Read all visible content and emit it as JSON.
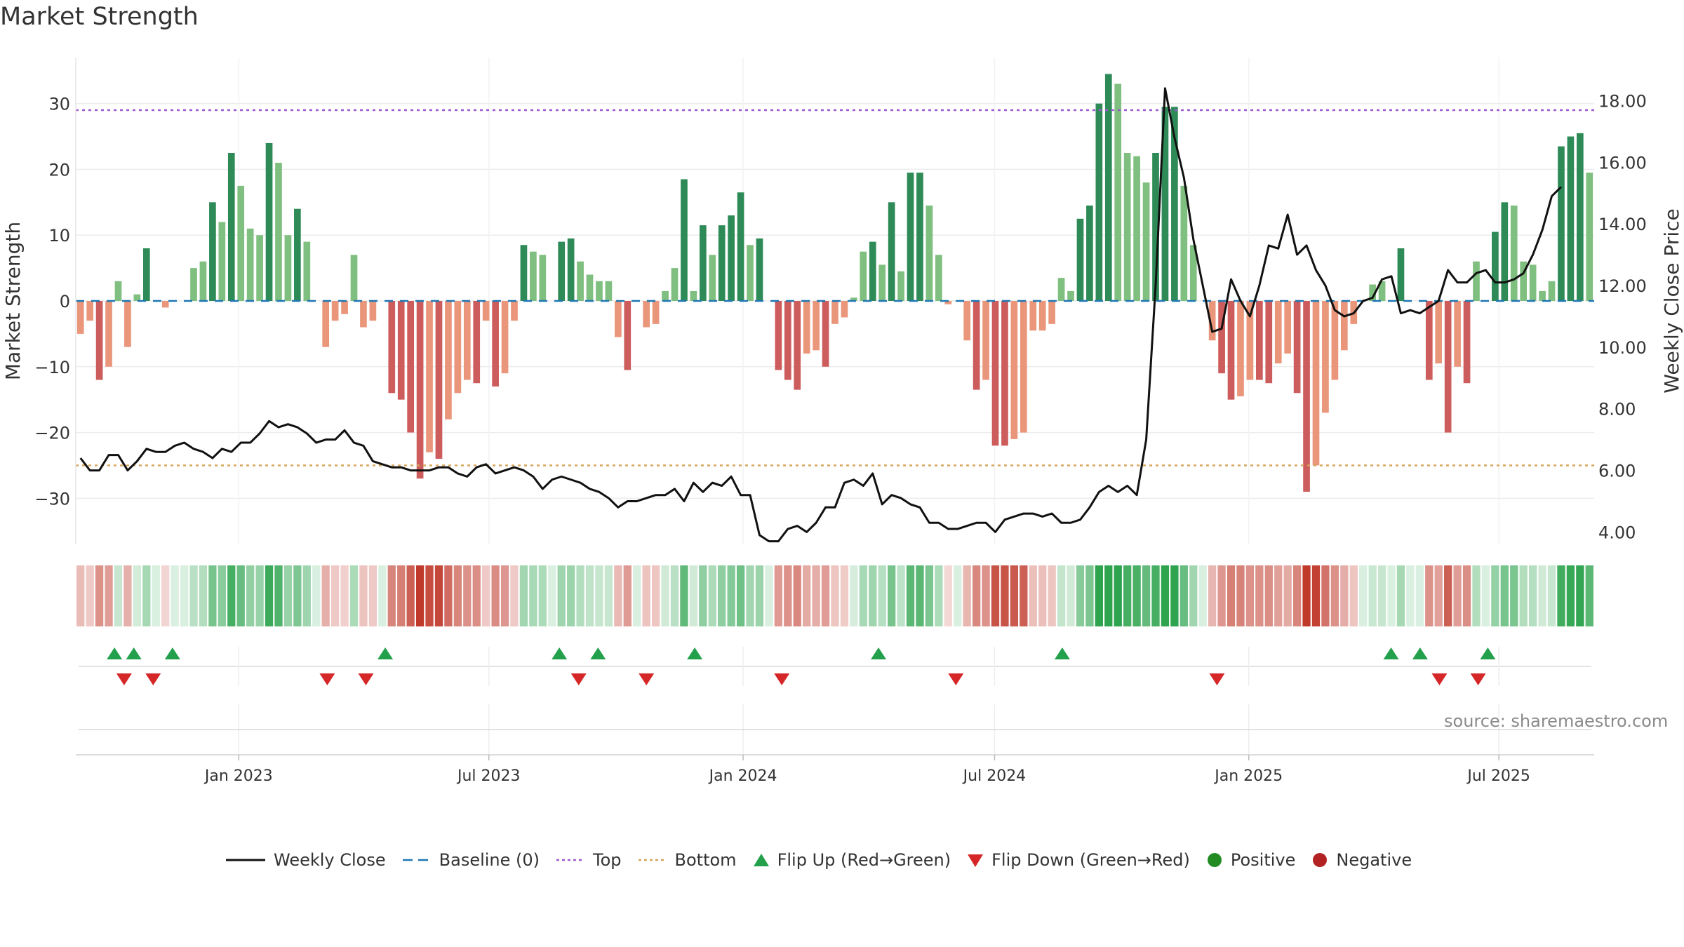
{
  "title": "Market Strength",
  "source": "source: sharemaestro.com",
  "colors": {
    "strong_green": "#2e8b57",
    "light_green": "#7fbf7f",
    "strong_red": "#cd5c5c",
    "light_red": "#e9967a",
    "top_line": "#9b59d0",
    "bottom_line": "#d4a65a",
    "baseline": "#1f77b4",
    "close_line": "#111111",
    "flip_up": "#22a04b",
    "flip_down": "#d62728"
  },
  "legend": [
    {
      "label": "Weekly Close",
      "icon": "line-solid",
      "color": "#111111"
    },
    {
      "label": "Baseline (0)",
      "icon": "line-dashed",
      "color": "#1f77b4"
    },
    {
      "label": "Top",
      "icon": "line-dotted",
      "color": "#9b59d0"
    },
    {
      "label": "Bottom",
      "icon": "line-dotted",
      "color": "#d4a65a"
    },
    {
      "label": "Flip Up (Red→Green)",
      "icon": "triangle-up",
      "color": "#22a04b"
    },
    {
      "label": "Flip Down (Green→Red)",
      "icon": "triangle-down",
      "color": "#d62728"
    },
    {
      "label": "Positive",
      "icon": "circle",
      "color": "#228b22"
    },
    {
      "label": "Negative",
      "icon": "circle",
      "color": "#b22222"
    }
  ],
  "chart_data": {
    "type": "bar",
    "title": "Market Strength",
    "ylabel": "Market Strength",
    "y2label": "Weekly Close Price",
    "ylim": [
      -37,
      37
    ],
    "y2lim": [
      3.6,
      19.4
    ],
    "yticks": [
      "30",
      "20",
      "10",
      "0",
      "−10",
      "−20",
      "−30"
    ],
    "yticks_values": [
      30,
      20,
      10,
      0,
      -10,
      -20,
      -30
    ],
    "y2ticks": [
      "18.00",
      "16.00",
      "14.00",
      "12.00",
      "10.00",
      "8.00",
      "6.00",
      "4.00"
    ],
    "y2ticks_values": [
      18,
      16,
      14,
      12,
      10,
      8,
      6,
      4
    ],
    "x_start": "2022-09-05",
    "x_end": "2025-09-08",
    "xticks": [
      {
        "label": "Jan 2023",
        "date": "2023-01-01"
      },
      {
        "label": "Jul 2023",
        "date": "2023-07-01"
      },
      {
        "label": "Jan 2024",
        "date": "2024-01-01"
      },
      {
        "label": "Jul 2024",
        "date": "2024-07-01"
      },
      {
        "label": "Jan 2025",
        "date": "2025-01-01"
      },
      {
        "label": "Jul 2025",
        "date": "2025-07-01"
      }
    ],
    "top_level": 29,
    "bottom_level": -25,
    "strength": [
      -5,
      -3,
      -12,
      -10,
      3,
      -7,
      1,
      8,
      0,
      -1,
      0,
      0,
      5,
      6,
      15,
      12,
      22.5,
      17.5,
      11,
      10,
      24,
      21,
      10,
      14,
      9,
      0,
      -7,
      -3,
      -2,
      7,
      -4,
      -3,
      0,
      -14,
      -15,
      -20,
      -27,
      -23,
      -24,
      -18,
      -14,
      -12,
      -12.5,
      -3,
      -13,
      -11,
      -3,
      8.5,
      7.5,
      7,
      0,
      9,
      9.5,
      6,
      4,
      3,
      3,
      -5.5,
      -10.5,
      0,
      -4,
      -3.5,
      1.5,
      5,
      18.5,
      1.5,
      11.5,
      7,
      11.5,
      13,
      16.5,
      8.5,
      9.5,
      0,
      -10.5,
      -12,
      -13.5,
      -8,
      -7.5,
      -10,
      -3.5,
      -2.5,
      0.5,
      7.5,
      9,
      5.5,
      15,
      4.5,
      19.5,
      19.5,
      14.5,
      7,
      -0.5,
      0,
      -6,
      -13.5,
      -12,
      -22,
      -22,
      -21,
      -20,
      -4.5,
      -4.5,
      -3.5,
      3.5,
      1.5,
      12.5,
      14.5,
      30,
      34.5,
      33,
      22.5,
      22,
      18,
      22.5,
      29.5,
      29.5,
      17.5,
      8.5,
      0,
      -6,
      -11,
      -15,
      -14.5,
      -12,
      -12,
      -12.5,
      -9.5,
      -8,
      -14,
      -29,
      -25,
      -17,
      -12,
      -7.5,
      -3.5,
      0,
      2.5,
      3,
      0,
      8,
      0,
      0,
      -12,
      -9.5,
      -20,
      -10,
      -12.5,
      6,
      0,
      10.5,
      15,
      14.5,
      6,
      5.5,
      1.5,
      3,
      23.5,
      25,
      25.5,
      19.5
    ],
    "close": [
      6.4,
      6.0,
      6.0,
      6.5,
      6.5,
      6.0,
      6.3,
      6.7,
      6.6,
      6.6,
      6.8,
      6.9,
      6.7,
      6.6,
      6.4,
      6.7,
      6.6,
      6.9,
      6.9,
      7.2,
      7.6,
      7.4,
      7.5,
      7.4,
      7.2,
      6.9,
      7.0,
      7.0,
      7.3,
      6.9,
      6.8,
      6.3,
      6.2,
      6.1,
      6.1,
      6.0,
      6.0,
      6.0,
      6.1,
      6.1,
      5.9,
      5.8,
      6.1,
      6.2,
      5.9,
      6.0,
      6.1,
      6.0,
      5.8,
      5.4,
      5.7,
      5.8,
      5.7,
      5.6,
      5.4,
      5.3,
      5.1,
      4.8,
      5.0,
      5.0,
      5.1,
      5.2,
      5.2,
      5.4,
      5.0,
      5.6,
      5.3,
      5.6,
      5.5,
      5.8,
      5.2,
      5.2,
      3.9,
      3.7,
      3.7,
      4.1,
      4.2,
      4.0,
      4.3,
      4.8,
      4.8,
      5.6,
      5.7,
      5.5,
      5.9,
      4.9,
      5.2,
      5.1,
      4.9,
      4.8,
      4.3,
      4.3,
      4.1,
      4.1,
      4.2,
      4.3,
      4.3,
      4.0,
      4.4,
      4.5,
      4.6,
      4.6,
      4.5,
      4.6,
      4.3,
      4.3,
      4.4,
      4.8,
      5.3,
      5.5,
      5.3,
      5.5,
      5.2,
      7.0,
      12.0,
      18.4,
      16.8,
      15.5,
      13.5,
      12.0,
      10.5,
      10.6,
      12.2,
      11.5,
      11.0,
      12.0,
      13.3,
      13.2,
      14.3,
      13.0,
      13.3,
      12.5,
      12.0,
      11.2,
      11.0,
      11.1,
      11.5,
      11.6,
      12.2,
      12.3,
      11.1,
      11.2,
      11.1,
      11.3,
      11.5,
      12.5,
      12.1,
      12.1,
      12.4,
      12.5,
      12.1,
      12.1,
      12.2,
      12.4,
      13.0,
      13.8,
      14.9,
      15.2
    ],
    "flip_up_dates": [
      "2022-10-03",
      "2022-10-17",
      "2022-11-14",
      "2023-04-17",
      "2023-08-21",
      "2023-09-18",
      "2023-11-27",
      "2024-04-08",
      "2024-08-19",
      "2025-04-14",
      "2025-05-05",
      "2025-06-23"
    ],
    "flip_down_dates": [
      "2022-10-10",
      "2022-10-31",
      "2023-03-06",
      "2023-04-03",
      "2023-09-04",
      "2023-10-23",
      "2024-01-29",
      "2024-06-03",
      "2024-12-09",
      "2025-05-19",
      "2025-06-16"
    ]
  }
}
